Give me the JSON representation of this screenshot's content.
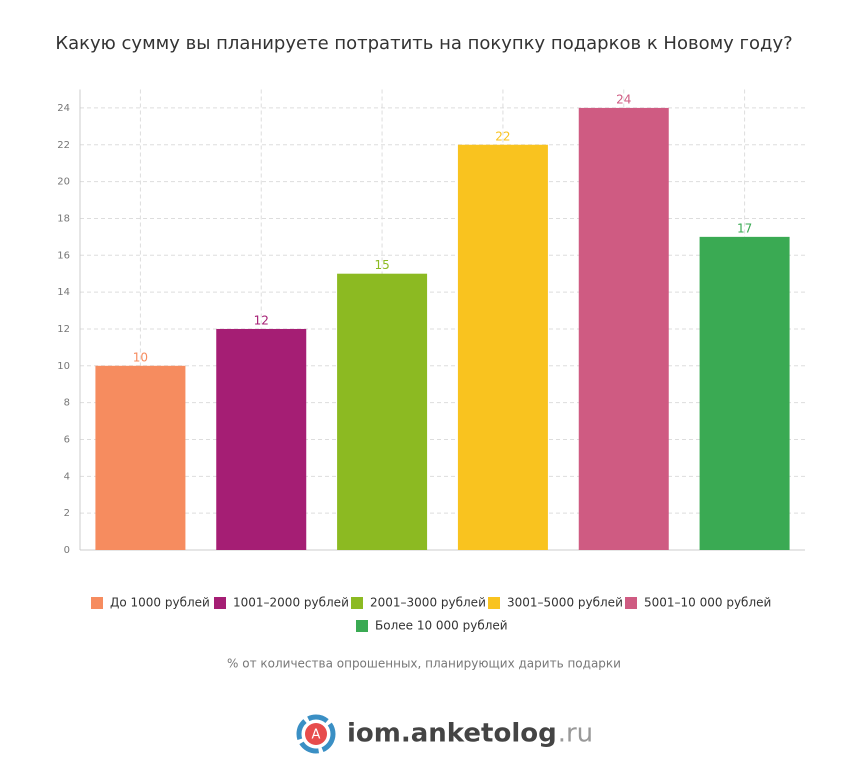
{
  "chart_data": {
    "type": "bar",
    "title": "Какую сумму вы планируете потратить на покупку подарков к Новому году?",
    "categories": [
      "До 1000 рублей",
      "1001–2000 рублей",
      "2001–3000 рублей",
      "3001–5000 рублей",
      "5001–10 000 рублей",
      "Более 10 000 рублей"
    ],
    "values": [
      10,
      12,
      15,
      22,
      24,
      17
    ],
    "colors": [
      "#f68c5f",
      "#a51e74",
      "#8cba22",
      "#f9c31f",
      "#cf5b82",
      "#3aaa53"
    ],
    "ylim": [
      0,
      25
    ],
    "yticks": [
      0,
      2,
      4,
      6,
      8,
      10,
      12,
      14,
      16,
      18,
      20,
      22,
      24
    ],
    "grid": true,
    "note": "% от количества опрошенных, планирующих дарить подарки"
  },
  "logo": {
    "name": "iom.anketolog",
    "domain": ".ru"
  }
}
